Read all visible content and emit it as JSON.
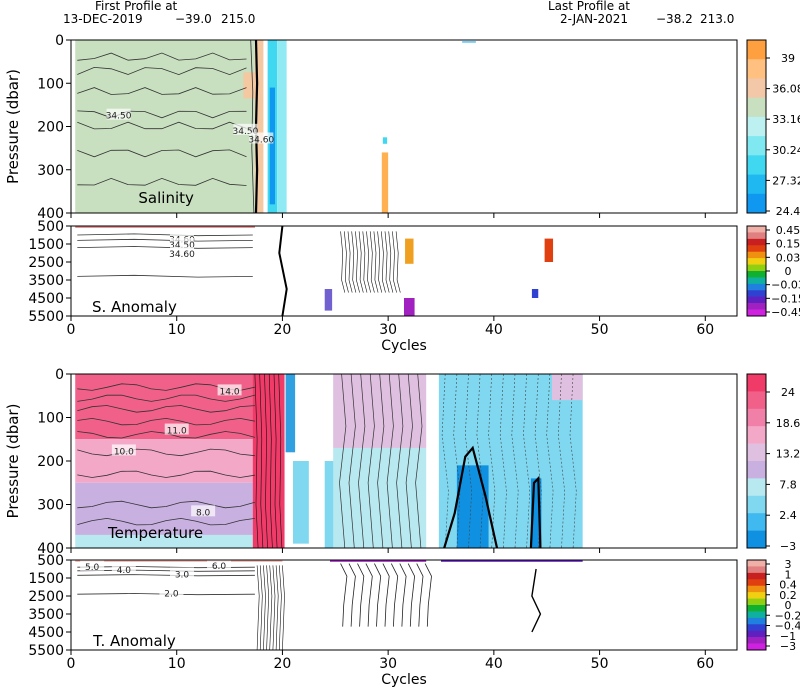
{
  "header": {
    "first_label": "First Profile at",
    "first_date": "13-DEC-2019",
    "first_lat": "−39.0",
    "first_lon": "215.0",
    "last_label": "Last Profile at",
    "last_date": "2-JAN-2021",
    "last_lat": "−38.2",
    "last_lon": "213.0"
  },
  "chart_data": [
    {
      "type": "heatmap",
      "title": "Salinity",
      "ylabel": "Pressure (dbar)",
      "xlabel": "",
      "xlim": [
        0,
        63
      ],
      "ylim": [
        400,
        0
      ],
      "xticks": [
        0,
        10,
        20,
        30,
        40,
        50,
        60
      ],
      "yticks": [
        0,
        100,
        200,
        300,
        400
      ],
      "colorbar": {
        "ticks": [
          "39",
          "36.08",
          "33.16",
          "30.24",
          "27.32",
          "24.4"
        ],
        "colors": [
          "#ffa040",
          "#ffc080",
          "#f2c8a8",
          "#c8e0c0",
          "#bdf0f0",
          "#7fe8f0",
          "#40d8f0",
          "#20b8f0",
          "#1098f0"
        ]
      },
      "contour_labels": [
        {
          "text": "34.50",
          "x": 4.5,
          "y": 175
        },
        {
          "text": "34.50",
          "x": 16.5,
          "y": 210
        },
        {
          "text": "34.60",
          "x": 18.0,
          "y": 230
        }
      ]
    },
    {
      "type": "heatmap",
      "title": "S. Anomaly",
      "xlabel": "Cycles",
      "ylabel": "",
      "xlim": [
        0,
        63
      ],
      "ylim": [
        5500,
        500
      ],
      "xticks": [
        0,
        10,
        20,
        30,
        40,
        50,
        60
      ],
      "yticks": [
        500,
        1500,
        2500,
        3500,
        4500,
        5500
      ],
      "colorbar": {
        "ticks": [
          "0.45",
          "0.15",
          "0.03",
          "0",
          "−0.03",
          "−0.15",
          "−0.45"
        ],
        "colors": [
          "#f0b0a8",
          "#e08080",
          "#c82020",
          "#e04010",
          "#f09010",
          "#f0d010",
          "#90d010",
          "#10b030",
          "#10b0a0",
          "#2080e0",
          "#3040d0",
          "#6020c0",
          "#a020c0",
          "#d020e0"
        ]
      },
      "contour_labels": [
        {
          "text": "34.60",
          "x": 10.5,
          "y": 1250
        },
        {
          "text": "34.50",
          "x": 10.5,
          "y": 1550
        },
        {
          "text": "34.60",
          "x": 10.5,
          "y": 2050
        }
      ]
    },
    {
      "type": "heatmap",
      "title": "Temperature",
      "ylabel": "Pressure (dbar)",
      "xlabel": "",
      "xlim": [
        0,
        63
      ],
      "ylim": [
        400,
        0
      ],
      "xticks": [
        0,
        10,
        20,
        30,
        40,
        50,
        60
      ],
      "yticks": [
        0,
        100,
        200,
        300,
        400
      ],
      "colorbar": {
        "ticks": [
          "24",
          "18.6",
          "13.2",
          "7.8",
          "2.4",
          "−3"
        ],
        "colors": [
          "#f03a68",
          "#f06088",
          "#f080a8",
          "#f4a8c8",
          "#e0c0e0",
          "#c8b0e0",
          "#b8e8f0",
          "#80d8f0",
          "#40b8f0",
          "#1090e0"
        ]
      },
      "contour_labels": [
        {
          "text": "14.0",
          "x": 15.0,
          "y": 40
        },
        {
          "text": "11.0",
          "x": 10.0,
          "y": 130
        },
        {
          "text": "10.0",
          "x": 5.0,
          "y": 178
        },
        {
          "text": "8.0",
          "x": 12.5,
          "y": 318
        }
      ]
    },
    {
      "type": "heatmap",
      "title": "T. Anomaly",
      "xlabel": "Cycles",
      "ylabel": "",
      "xlim": [
        0,
        63
      ],
      "ylim": [
        5500,
        500
      ],
      "xticks": [
        0,
        10,
        20,
        30,
        40,
        50,
        60
      ],
      "yticks": [
        500,
        1500,
        2500,
        3500,
        4500,
        5500
      ],
      "colorbar": {
        "ticks": [
          "3",
          "1",
          "0.4",
          "0.2",
          "0",
          "−0.2",
          "−0.4",
          "−1",
          "−3"
        ],
        "colors": [
          "#f0b0a8",
          "#e08080",
          "#c82020",
          "#e04010",
          "#f09010",
          "#f0d010",
          "#90d010",
          "#10b030",
          "#10b0a0",
          "#2080e0",
          "#3040d0",
          "#6020c0",
          "#a020c0",
          "#d020e0"
        ]
      },
      "contour_labels": [
        {
          "text": "6.0",
          "x": 14.0,
          "y": 820
        },
        {
          "text": "5.0",
          "x": 2.0,
          "y": 880
        },
        {
          "text": "4.0",
          "x": 5.0,
          "y": 1050
        },
        {
          "text": "3.0",
          "x": 10.5,
          "y": 1300
        },
        {
          "text": "2.0",
          "x": 9.5,
          "y": 2350
        }
      ]
    }
  ]
}
